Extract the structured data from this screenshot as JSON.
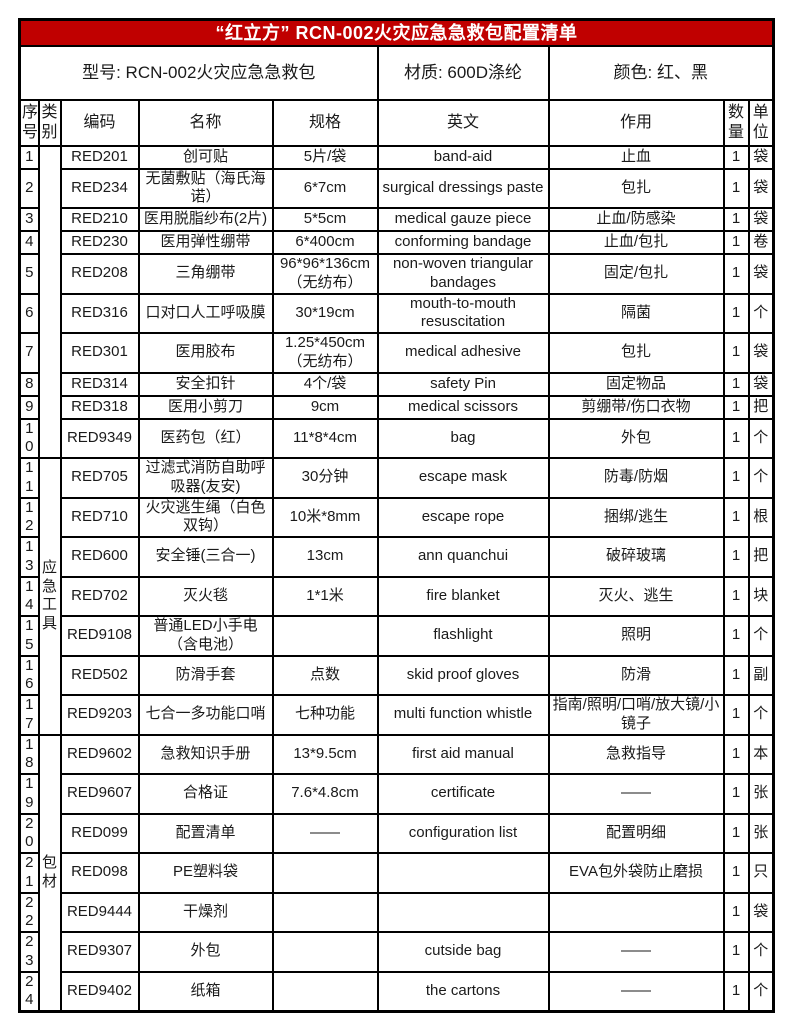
{
  "title": "“红立方” RCN-002火灾应急急救包配置清单",
  "info": {
    "model": "型号: RCN-002火灾应急急救包",
    "material": "材质: 600D涤纶",
    "color": "颜色: 红、黑"
  },
  "columns": {
    "index": "序号",
    "category": "类别",
    "code": "编码",
    "name": "名称",
    "spec": "规格",
    "english": "英文",
    "function": "作用",
    "qty": "数量",
    "unit": "单位"
  },
  "categories": [
    {
      "label": "",
      "rowspan": 10
    },
    {
      "label": "应急工具",
      "rowspan": 7
    },
    {
      "label": "包材",
      "rowspan": 7
    }
  ],
  "rows": [
    {
      "no": "1",
      "code": "RED201",
      "name": "创可贴",
      "spec": "5片/袋",
      "english": "band-aid",
      "function": "止血",
      "qty": "1",
      "unit": "袋"
    },
    {
      "no": "2",
      "code": "RED234",
      "name": "无菌敷贴（海氏海诺）",
      "spec": "6*7cm",
      "english": "surgical dressings paste",
      "function": "包扎",
      "qty": "1",
      "unit": "袋"
    },
    {
      "no": "3",
      "code": "RED210",
      "name": "医用脱脂纱布(2片)",
      "spec": "5*5cm",
      "english": "medical gauze piece",
      "function": "止血/防感染",
      "qty": "1",
      "unit": "袋"
    },
    {
      "no": "4",
      "code": "RED230",
      "name": "医用弹性绷带",
      "spec": "6*400cm",
      "english": "conforming bandage",
      "function": "止血/包扎",
      "qty": "1",
      "unit": "卷"
    },
    {
      "no": "5",
      "code": "RED208",
      "name": "三角绷带",
      "spec": "96*96*136cm（无纺布）",
      "english": "non-woven triangular bandages",
      "function": "固定/包扎",
      "qty": "1",
      "unit": "袋"
    },
    {
      "no": "6",
      "code": "RED316",
      "name": "口对口人工呼吸膜",
      "spec": "30*19cm",
      "english": "mouth-to-mouth resuscitation",
      "function": "隔菌",
      "qty": "1",
      "unit": "个"
    },
    {
      "no": "7",
      "code": "RED301",
      "name": "医用胶布",
      "spec": "1.25*450cm（无纺布）",
      "english": "medical adhesive",
      "function": "包扎",
      "qty": "1",
      "unit": "袋"
    },
    {
      "no": "8",
      "code": "RED314",
      "name": "安全扣针",
      "spec": "4个/袋",
      "english": "safety Pin",
      "function": "固定物品",
      "qty": "1",
      "unit": "袋"
    },
    {
      "no": "9",
      "code": "RED318",
      "name": "医用小剪刀",
      "spec": "9cm",
      "english": "medical scissors",
      "function": "剪绷带/伤口衣物",
      "qty": "1",
      "unit": "把"
    },
    {
      "no": "10",
      "code": "RED9349",
      "name": "医药包（红）",
      "spec": "11*8*4cm",
      "english": "bag",
      "function": "外包",
      "qty": "1",
      "unit": "个"
    },
    {
      "no": "11",
      "code": "RED705",
      "name": "过滤式消防自助呼吸器(友安)",
      "spec": "30分钟",
      "english": "escape mask",
      "function": "防毒/防烟",
      "qty": "1",
      "unit": "个"
    },
    {
      "no": "12",
      "code": "RED710",
      "name": "火灾逃生绳（白色双钩）",
      "spec": "10米*8mm",
      "english": "escape rope",
      "function": "捆绑/逃生",
      "qty": "1",
      "unit": "根"
    },
    {
      "no": "13",
      "code": "RED600",
      "name": "安全锤(三合一)",
      "spec": "13cm",
      "english": "ann quanchui",
      "function": "破碎玻璃",
      "qty": "1",
      "unit": "把"
    },
    {
      "no": "14",
      "code": "RED702",
      "name": "灭火毯",
      "spec": "1*1米",
      "english": "fire blanket",
      "function": "灭火、逃生",
      "qty": "1",
      "unit": "块"
    },
    {
      "no": "15",
      "code": "RED9108",
      "name": "普通LED小手电（含电池）",
      "spec": "",
      "english": "flashlight",
      "function": "照明",
      "qty": "1",
      "unit": "个"
    },
    {
      "no": "16",
      "code": "RED502",
      "name": "防滑手套",
      "spec": "点数",
      "english": "skid proof gloves",
      "function": "防滑",
      "qty": "1",
      "unit": "副"
    },
    {
      "no": "17",
      "code": "RED9203",
      "name": "七合一多功能口哨",
      "spec": "七种功能",
      "english": "multi function whistle",
      "function": "指南/照明/口哨/放大镜/小镜子",
      "qty": "1",
      "unit": "个"
    },
    {
      "no": "18",
      "code": "RED9602",
      "name": "急救知识手册",
      "spec": "13*9.5cm",
      "english": "first aid manual",
      "function": "急救指导",
      "qty": "1",
      "unit": "本"
    },
    {
      "no": "19",
      "code": "RED9607",
      "name": "合格证",
      "spec": "7.6*4.8cm",
      "english": "certificate",
      "function": "——",
      "qty": "1",
      "unit": "张"
    },
    {
      "no": "20",
      "code": "RED099",
      "name": "配置清单",
      "spec": "——",
      "english": "configuration list",
      "function": "配置明细",
      "qty": "1",
      "unit": "张"
    },
    {
      "no": "21",
      "code": "RED098",
      "name": "PE塑料袋",
      "spec": "",
      "english": "",
      "function": "EVA包外袋防止磨损",
      "qty": "1",
      "unit": "只"
    },
    {
      "no": "22",
      "code": "RED9444",
      "name": "干燥剂",
      "spec": "",
      "english": "",
      "function": "",
      "qty": "1",
      "unit": "袋"
    },
    {
      "no": "23",
      "code": "RED9307",
      "name": "外包",
      "spec": "",
      "english": "cutside bag",
      "function": "——",
      "qty": "1",
      "unit": "个"
    },
    {
      "no": "24",
      "code": "RED9402",
      "name": "纸箱",
      "spec": "",
      "english": "the cartons",
      "function": "——",
      "qty": "1",
      "unit": "个"
    }
  ],
  "colors": {
    "title_bg": "#C00000",
    "title_text": "#FFFFFF",
    "border": "#000000",
    "body_bg": "#FFFFFF"
  }
}
